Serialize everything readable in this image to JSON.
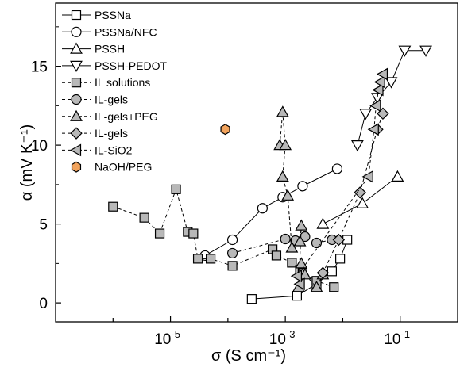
{
  "chart_data": {
    "type": "scatter",
    "xlabel": "σ (S cm⁻¹)",
    "ylabel": "α (mV K⁻¹)",
    "xscale": "log",
    "xlim": [
      1e-07,
      1
    ],
    "ylim": [
      -1.2,
      19
    ],
    "grid": false,
    "legend_position": "top-left",
    "x_ticks": [
      {
        "value": 1e-05,
        "label": "10",
        "exp": "-5"
      },
      {
        "value": 0.001,
        "label": "10",
        "exp": "-3"
      },
      {
        "value": 0.1,
        "label": "10",
        "exp": "-1"
      }
    ],
    "y_ticks": [
      0,
      5,
      10,
      15
    ],
    "series": [
      {
        "name": "PSSNa",
        "marker": "square",
        "fill": "#ffffff",
        "line": "solid",
        "points": [
          [
            0.00026,
            0.25
          ],
          [
            0.0016,
            0.45
          ],
          [
            0.0035,
            1.2
          ],
          [
            0.0065,
            2.0
          ],
          [
            0.009,
            2.8
          ],
          [
            0.012,
            4.0
          ]
        ]
      },
      {
        "name": "PSSNa/NFC",
        "marker": "circle",
        "fill": "#ffffff",
        "line": "solid",
        "points": [
          [
            4e-05,
            3.0
          ],
          [
            0.00012,
            4.0
          ],
          [
            0.0004,
            6.0
          ],
          [
            0.0009,
            6.7
          ],
          [
            0.002,
            7.4
          ],
          [
            0.008,
            8.5
          ]
        ]
      },
      {
        "name": "PSSH",
        "marker": "triangle-up",
        "fill": "#ffffff",
        "line": "solid",
        "points": [
          [
            0.0045,
            5.0
          ],
          [
            0.022,
            6.3
          ],
          [
            0.09,
            8.0
          ]
        ]
      },
      {
        "name": "PSSH-PEDOT",
        "marker": "triangle-down",
        "fill": "#ffffff",
        "line": "solid",
        "points": [
          [
            0.018,
            10.0
          ],
          [
            0.025,
            12.0
          ],
          [
            0.04,
            13.0
          ],
          [
            0.07,
            14.0
          ],
          [
            0.12,
            16.0
          ],
          [
            0.28,
            16.0
          ]
        ]
      },
      {
        "name": "IL solutions",
        "marker": "square",
        "fill": "#b8b8b8",
        "line": "dashed",
        "points": [
          [
            1e-06,
            6.1
          ],
          [
            3.5e-06,
            5.4
          ],
          [
            6.5e-06,
            4.4
          ],
          [
            1.25e-05,
            7.2
          ],
          [
            2e-05,
            4.5
          ],
          [
            2.5e-05,
            4.4
          ],
          [
            3e-05,
            2.8
          ],
          [
            5e-05,
            2.8
          ],
          [
            0.00012,
            2.35
          ],
          [
            0.0006,
            3.4
          ],
          [
            0.0007,
            3.0
          ],
          [
            0.0013,
            2.55
          ],
          [
            0.0018,
            2.1
          ],
          [
            0.002,
            1.9
          ],
          [
            0.0035,
            1.4
          ],
          [
            0.007,
            1.0
          ]
        ]
      },
      {
        "name": "IL-gels",
        "marker": "circle",
        "fill": "#b8b8b8",
        "line": "dashed",
        "points": [
          [
            0.00012,
            3.15
          ],
          [
            0.001,
            4.05
          ],
          [
            0.0015,
            3.95
          ],
          [
            0.0022,
            4.2
          ],
          [
            0.0035,
            3.8
          ],
          [
            0.0065,
            4.0
          ]
        ]
      },
      {
        "name": "IL-gels+PEG",
        "marker": "triangle-up",
        "fill": "#b8b8b8",
        "line": "dashed",
        "points": [
          [
            0.0008,
            10.0
          ],
          [
            0.0009,
            12.1
          ],
          [
            0.001,
            10.0
          ],
          [
            0.0009,
            8.0
          ],
          [
            0.0011,
            6.8
          ],
          [
            0.0013,
            3.5
          ],
          [
            0.0018,
            3.9
          ],
          [
            0.0019,
            4.9
          ],
          [
            0.0017,
            1.0
          ],
          [
            0.0019,
            2.5
          ],
          [
            0.0022,
            1.8
          ],
          [
            0.0035,
            1.0
          ],
          [
            0.0045,
            1.8
          ]
        ]
      },
      {
        "name": "IL-gels",
        "marker": "diamond",
        "fill": "#b8b8b8",
        "line": "dashed",
        "points": [
          [
            0.0045,
            1.9
          ],
          [
            0.0085,
            4.0
          ],
          [
            0.02,
            7.0
          ],
          [
            0.04,
            11.0
          ],
          [
            0.05,
            12.0
          ]
        ]
      },
      {
        "name": "IL-SiO2",
        "marker": "triangle-left",
        "fill": "#b8b8b8",
        "line": "dashed",
        "points": [
          [
            0.0018,
            1.2
          ],
          [
            0.0016,
            1.7
          ],
          [
            0.028,
            8.0
          ],
          [
            0.035,
            11.0
          ],
          [
            0.038,
            12.5
          ],
          [
            0.042,
            13.5
          ],
          [
            0.045,
            14.0
          ],
          [
            0.05,
            14.5
          ]
        ]
      },
      {
        "name": "NaOH/PEG",
        "marker": "hexagon",
        "fill": "#f2a35c",
        "line": "none",
        "points": [
          [
            9e-05,
            11.0
          ]
        ]
      }
    ]
  },
  "colors": {
    "ink": "#000000",
    "gray_fill": "#b8b8b8",
    "open_fill": "#ffffff",
    "orange_fill": "#f2a35c"
  }
}
